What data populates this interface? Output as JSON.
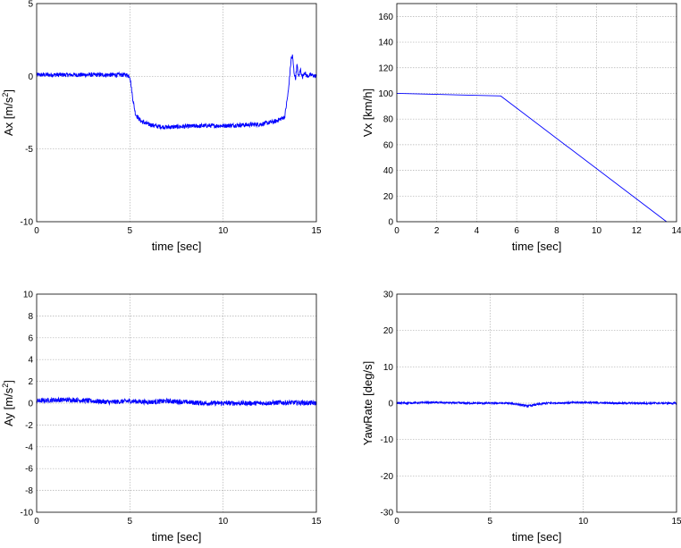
{
  "chart_data": [
    {
      "type": "line",
      "title": "",
      "xlabel": "time [sec]",
      "ylabel_text": "Ax [m/s",
      "ylabel_sup": "2",
      "ylabel_close": "]",
      "xlim": [
        0,
        15
      ],
      "ylim": [
        -10,
        5
      ],
      "xticks": [
        0,
        5,
        10,
        15
      ],
      "yticks": [
        -10,
        -5,
        0,
        5
      ],
      "grid": true,
      "color": "#0000ff",
      "noise": 0.15,
      "series": [
        {
          "name": "Ax",
          "x": [
            0,
            1,
            2,
            3,
            4,
            4.8,
            5.0,
            5.15,
            5.3,
            5.6,
            6.0,
            6.5,
            7,
            8,
            9,
            10,
            11,
            12,
            12.8,
            13.3,
            13.5,
            13.6,
            13.65,
            13.72,
            13.8,
            13.88,
            13.96,
            14.05,
            14.15,
            14.25,
            14.35,
            14.5,
            14.7,
            15
          ],
          "y": [
            0.1,
            0.1,
            0.1,
            0.1,
            0.1,
            0.1,
            0.0,
            -1.5,
            -2.6,
            -3.1,
            -3.3,
            -3.45,
            -3.5,
            -3.45,
            -3.4,
            -3.4,
            -3.35,
            -3.3,
            -3.1,
            -2.8,
            -1.0,
            0.5,
            1.2,
            1.4,
            0.3,
            -0.2,
            0.8,
            -0.1,
            0.5,
            -0.1,
            0.3,
            0.0,
            0.1,
            0.0
          ]
        }
      ]
    },
    {
      "type": "line",
      "title": "",
      "xlabel": "time [sec]",
      "ylabel_text": "Vx [km/h]",
      "ylabel_sup": "",
      "ylabel_close": "",
      "xlim": [
        0,
        14
      ],
      "ylim": [
        0,
        170
      ],
      "xticks": [
        0,
        2,
        4,
        6,
        8,
        10,
        12,
        14
      ],
      "yticks": [
        0,
        20,
        40,
        60,
        80,
        100,
        120,
        140,
        160
      ],
      "grid": true,
      "color": "#0000ff",
      "noise": 0,
      "series": [
        {
          "name": "Vx",
          "x": [
            0,
            5.2,
            13.5
          ],
          "y": [
            100,
            98,
            0
          ]
        }
      ]
    },
    {
      "type": "line",
      "title": "",
      "xlabel": "time [sec]",
      "ylabel_text": "Ay [m/s",
      "ylabel_sup": "2",
      "ylabel_close": "]",
      "xlim": [
        0,
        15
      ],
      "ylim": [
        -10,
        10
      ],
      "xticks": [
        0,
        5,
        10,
        15
      ],
      "yticks": [
        -10,
        -8,
        -6,
        -4,
        -2,
        0,
        2,
        4,
        6,
        8,
        10
      ],
      "grid": true,
      "color": "#0000ff",
      "noise": 0.22,
      "series": [
        {
          "name": "Ay",
          "x": [
            0,
            1,
            2,
            3,
            4,
            5,
            6,
            7,
            8,
            9,
            10,
            11,
            12,
            13,
            14,
            15
          ],
          "y": [
            0.2,
            0.3,
            0.3,
            0.2,
            0.1,
            0.2,
            0.1,
            0.2,
            0.1,
            0.0,
            0.0,
            0.0,
            0.0,
            0.05,
            0.05,
            0.0
          ]
        }
      ]
    },
    {
      "type": "line",
      "title": "",
      "xlabel": "time [sec]",
      "ylabel_text": "YawRate [deg/s]",
      "ylabel_sup": "",
      "ylabel_close": "",
      "xlim": [
        0,
        15
      ],
      "ylim": [
        -30,
        30
      ],
      "xticks": [
        0,
        5,
        10,
        15
      ],
      "yticks": [
        -30,
        -20,
        -10,
        0,
        10,
        20,
        30
      ],
      "grid": true,
      "color": "#0000ff",
      "noise": 0.25,
      "series": [
        {
          "name": "YawRate",
          "x": [
            0,
            2,
            4,
            5,
            6,
            6.5,
            7,
            7.5,
            8,
            10,
            12,
            15
          ],
          "y": [
            0.0,
            0.2,
            0.0,
            0.0,
            0.0,
            -0.3,
            -0.8,
            -0.4,
            0.0,
            0.2,
            0.0,
            0.0
          ]
        }
      ]
    }
  ]
}
